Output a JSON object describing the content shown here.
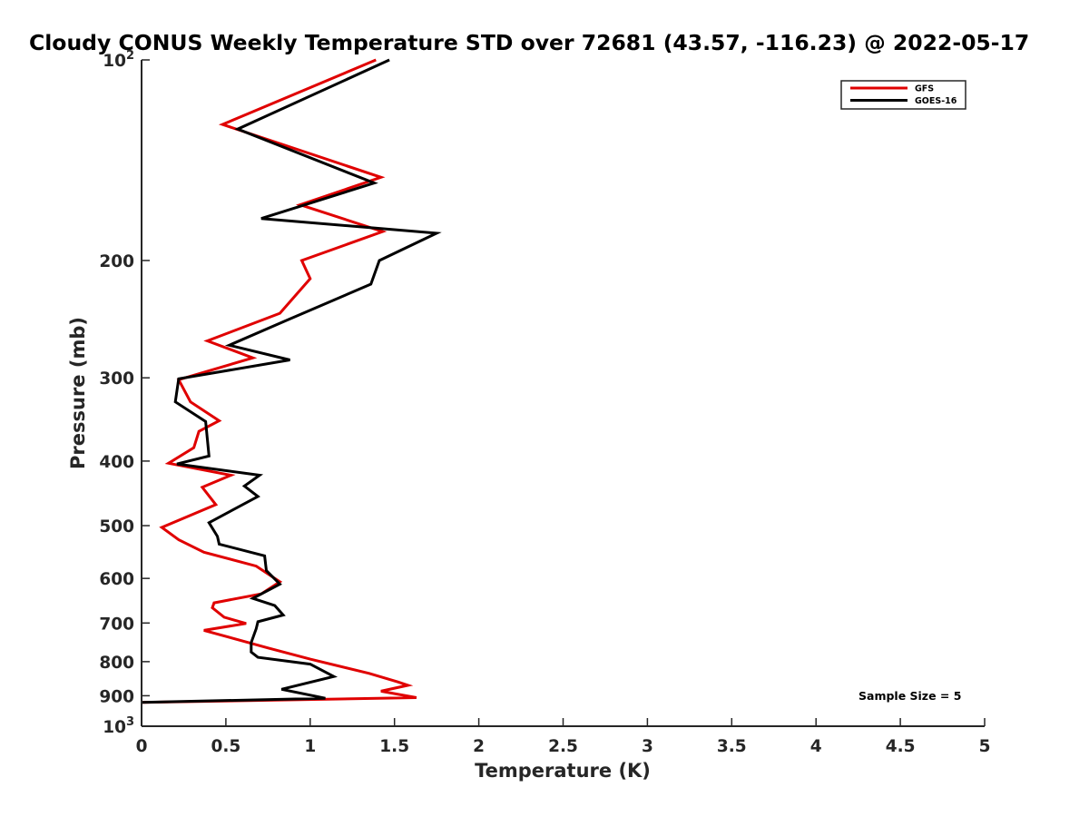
{
  "chart_data": {
    "type": "line",
    "title": "Cloudy CONUS Weekly Temperature STD over 72681 (43.57, -116.23) @ 2022-05-17",
    "xlabel": "Temperature (K)",
    "ylabel": "Pressure (mb)",
    "xlim": [
      0,
      5
    ],
    "ylim": [
      100,
      1000
    ],
    "y_scale": "log",
    "y_reversed": true,
    "grid": false,
    "legend_position": "top-right",
    "x_ticks": [
      0,
      0.5,
      1,
      1.5,
      2,
      2.5,
      3,
      3.5,
      4,
      4.5,
      5
    ],
    "x_tick_labels": [
      "0",
      "0.5",
      "1",
      "1.5",
      "2",
      "2.5",
      "3",
      "3.5",
      "4",
      "4.5",
      "5"
    ],
    "y_ticks": [
      {
        "value": 100,
        "base": "10",
        "exp": "2",
        "text": ""
      },
      {
        "value": 200,
        "base": "",
        "exp": "",
        "text": "200"
      },
      {
        "value": 300,
        "base": "",
        "exp": "",
        "text": "300"
      },
      {
        "value": 400,
        "base": "",
        "exp": "",
        "text": "400"
      },
      {
        "value": 500,
        "base": "",
        "exp": "",
        "text": "500"
      },
      {
        "value": 600,
        "base": "",
        "exp": "",
        "text": "600"
      },
      {
        "value": 700,
        "base": "",
        "exp": "",
        "text": "700"
      },
      {
        "value": 800,
        "base": "",
        "exp": "",
        "text": "800"
      },
      {
        "value": 900,
        "base": "",
        "exp": "",
        "text": "900"
      },
      {
        "value": 1000,
        "base": "10",
        "exp": "3",
        "text": ""
      }
    ],
    "annotation": "Sample Size = 5",
    "series": [
      {
        "name": "GFS",
        "color": "#e00000",
        "points": [
          [
            1.39,
            100
          ],
          [
            0.48,
            125
          ],
          [
            1.42,
            150
          ],
          [
            0.94,
            165
          ],
          [
            1.43,
            181
          ],
          [
            0.95,
            200
          ],
          [
            1.0,
            213
          ],
          [
            0.82,
            240
          ],
          [
            0.39,
            264
          ],
          [
            0.66,
            280
          ],
          [
            0.22,
            302
          ],
          [
            0.29,
            326
          ],
          [
            0.46,
            348
          ],
          [
            0.34,
            361
          ],
          [
            0.31,
            382
          ],
          [
            0.16,
            403
          ],
          [
            0.53,
            420
          ],
          [
            0.36,
            438
          ],
          [
            0.44,
            465
          ],
          [
            0.12,
            503
          ],
          [
            0.22,
            525
          ],
          [
            0.37,
            548
          ],
          [
            0.68,
            575
          ],
          [
            0.82,
            607
          ],
          [
            0.71,
            633
          ],
          [
            0.43,
            653
          ],
          [
            0.42,
            664
          ],
          [
            0.49,
            686
          ],
          [
            0.62,
            701
          ],
          [
            0.37,
            718
          ],
          [
            0.75,
            763
          ],
          [
            1.0,
            793
          ],
          [
            1.35,
            833
          ],
          [
            1.52,
            858
          ],
          [
            1.58,
            868
          ],
          [
            1.42,
            886
          ],
          [
            1.63,
            906
          ],
          [
            0.0,
            921
          ]
        ]
      },
      {
        "name": "GOES-16",
        "color": "#000000",
        "points": [
          [
            1.47,
            100
          ],
          [
            0.57,
            127
          ],
          [
            1.38,
            153
          ],
          [
            0.71,
            173
          ],
          [
            1.75,
            182
          ],
          [
            1.41,
            200
          ],
          [
            1.36,
            217
          ],
          [
            0.86,
            246
          ],
          [
            0.52,
            268
          ],
          [
            0.88,
            282
          ],
          [
            0.22,
            301
          ],
          [
            0.2,
            326
          ],
          [
            0.38,
            349
          ],
          [
            0.4,
            393
          ],
          [
            0.21,
            404
          ],
          [
            0.7,
            420
          ],
          [
            0.61,
            436
          ],
          [
            0.69,
            452
          ],
          [
            0.4,
            495
          ],
          [
            0.45,
            519
          ],
          [
            0.46,
            533
          ],
          [
            0.73,
            555
          ],
          [
            0.74,
            584
          ],
          [
            0.82,
            612
          ],
          [
            0.66,
            643
          ],
          [
            0.79,
            659
          ],
          [
            0.84,
            681
          ],
          [
            0.69,
            697
          ],
          [
            0.68,
            714
          ],
          [
            0.65,
            749
          ],
          [
            0.65,
            774
          ],
          [
            0.69,
            788
          ],
          [
            1.0,
            807
          ],
          [
            1.14,
            842
          ],
          [
            0.83,
            880
          ],
          [
            1.09,
            908
          ],
          [
            0.0,
            921
          ]
        ]
      }
    ]
  }
}
